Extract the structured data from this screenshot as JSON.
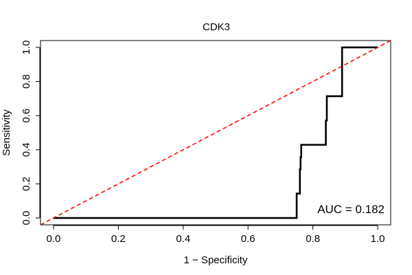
{
  "chart_data": {
    "type": "line",
    "title": "CDK3",
    "xlabel": "1 − Specificity",
    "ylabel": "Sensitivity",
    "xlim": [
      -0.04,
      1.04
    ],
    "ylim": [
      -0.04,
      1.04
    ],
    "x_ticks": [
      0.0,
      0.2,
      0.4,
      0.6,
      0.8,
      1.0
    ],
    "x_tick_labels": [
      "0.0",
      "0.2",
      "0.4",
      "0.6",
      "0.8",
      "1.0"
    ],
    "y_ticks": [
      0.0,
      0.2,
      0.4,
      0.6,
      0.8,
      1.0
    ],
    "y_tick_labels": [
      "0.0",
      "0.2",
      "0.4",
      "0.6",
      "0.8",
      "1.0"
    ],
    "grid": false,
    "series": [
      {
        "name": "ROC curve",
        "style": "solid",
        "color": "#000000",
        "x": [
          0.0,
          0.75,
          0.75,
          0.76,
          0.76,
          0.762,
          0.762,
          0.764,
          0.764,
          0.84,
          0.84,
          0.843,
          0.843,
          0.89,
          0.89,
          1.0
        ],
        "y": [
          0.0,
          0.0,
          0.143,
          0.143,
          0.286,
          0.286,
          0.357,
          0.357,
          0.429,
          0.429,
          0.571,
          0.571,
          0.714,
          0.714,
          1.0,
          1.0
        ]
      },
      {
        "name": "Chance line",
        "style": "dashed",
        "color": "#ff0000",
        "x": [
          -0.04,
          1.04
        ],
        "y": [
          -0.04,
          1.04
        ]
      }
    ],
    "annotations": [
      {
        "text": "AUC = 0.182",
        "position": "bottom-right"
      }
    ]
  }
}
